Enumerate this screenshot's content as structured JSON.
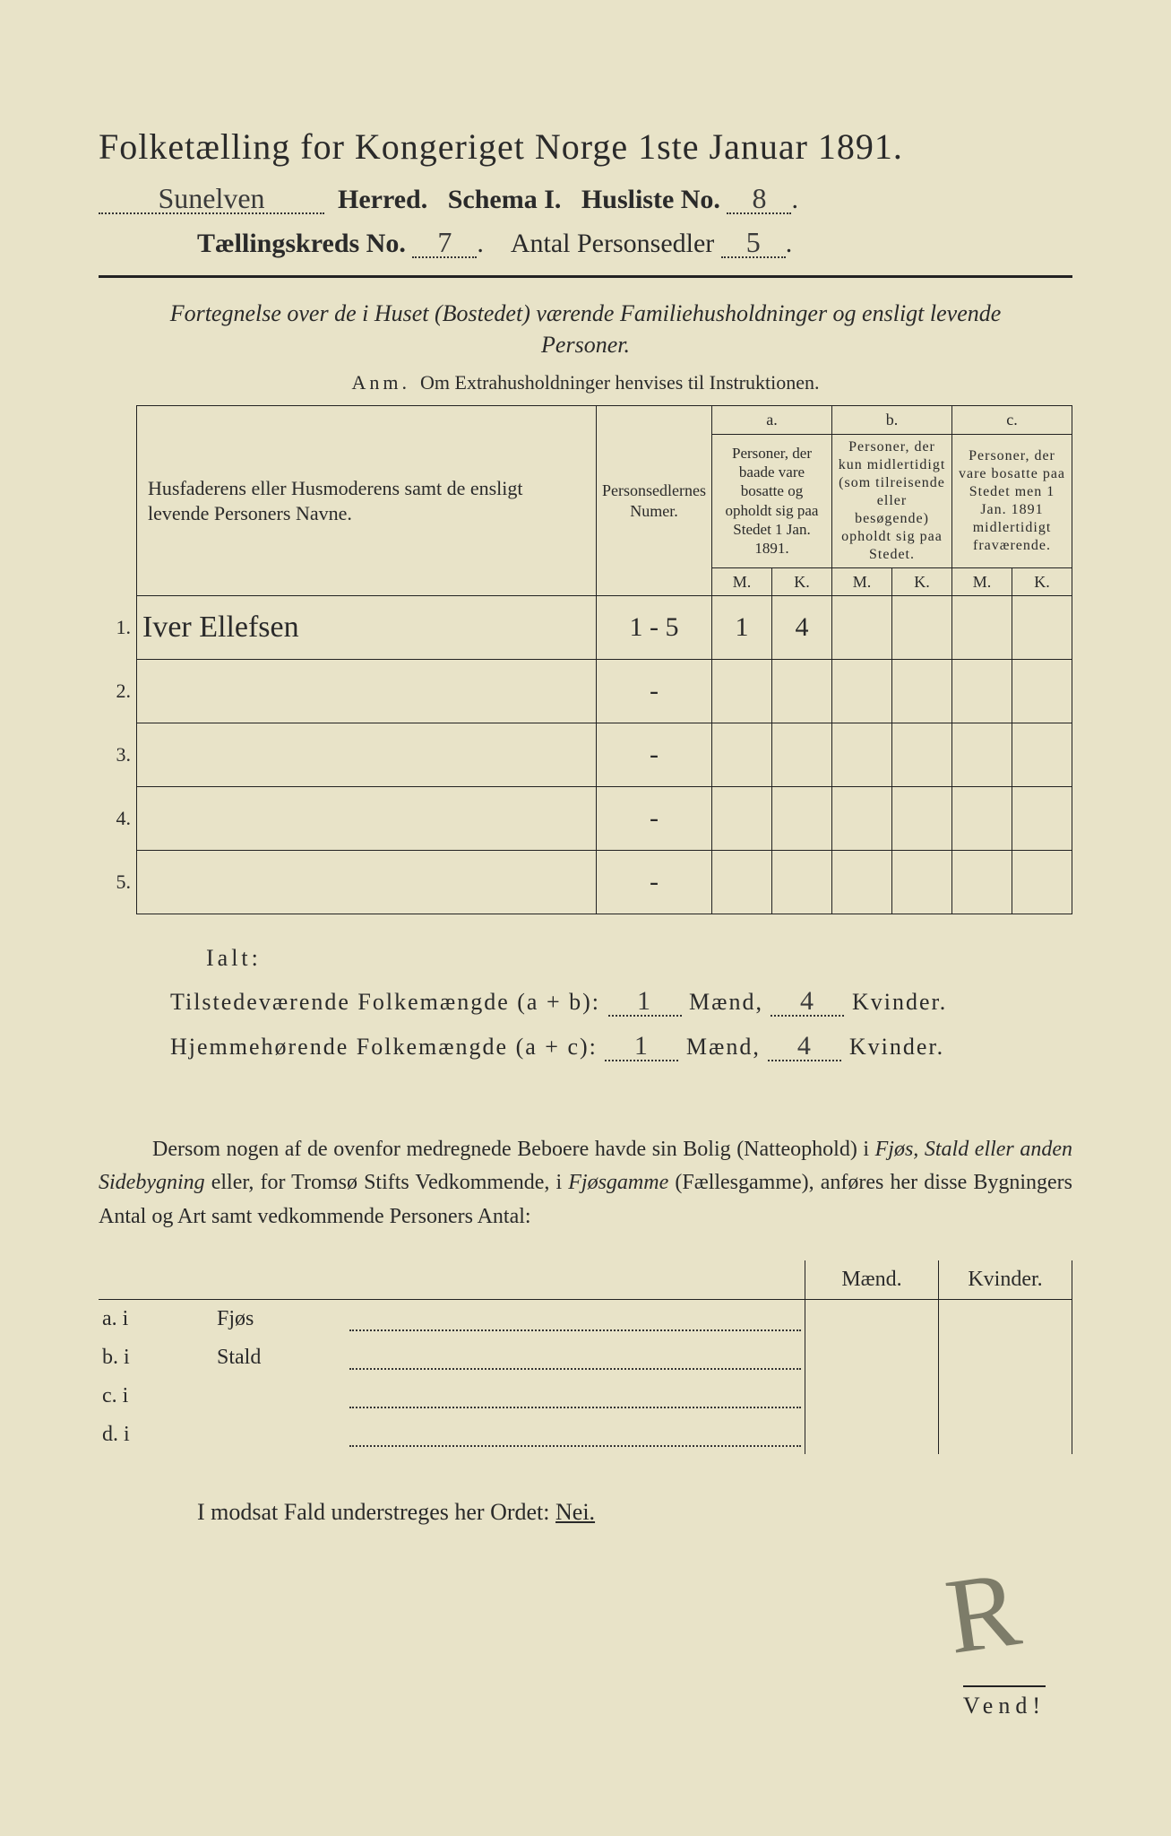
{
  "title": "Folketælling for Kongeriget Norge 1ste Januar 1891.",
  "header": {
    "herred_value": "Sunelven",
    "herred_label": "Herred.",
    "schema_label": "Schema I.",
    "husliste_label": "Husliste No.",
    "husliste_value": "8",
    "kreds_label": "Tællingskreds No.",
    "kreds_value": "7",
    "personsedler_label": "Antal Personsedler",
    "personsedler_value": "5"
  },
  "subtitle": "Fortegnelse over de i Huset (Bostedet) værende Familiehusholdninger og ensligt levende Personer.",
  "anm_label": "Anm.",
  "anm_text": "Om Extrahusholdninger henvises til Instruktionen.",
  "columns": {
    "name_header": "Husfaderens eller Husmoderens samt de ensligt levende Personers Navne.",
    "sedler_header": "Personsedlernes Numer.",
    "a_label": "a.",
    "a_text": "Personer, der baade vare bosatte og opholdt sig paa Stedet 1 Jan. 1891.",
    "b_label": "b.",
    "b_text": "Personer, der kun midlertidigt (som tilreisende eller besøgende) opholdt sig paa Stedet.",
    "c_label": "c.",
    "c_text": "Personer, der vare bosatte paa Stedet men 1 Jan. 1891 midlertidigt fraværende.",
    "M": "M.",
    "K": "K."
  },
  "rows": [
    {
      "n": "1.",
      "name": "Iver Ellefsen",
      "sedler": "1 - 5",
      "aM": "1",
      "aK": "4",
      "bM": "",
      "bK": "",
      "cM": "",
      "cK": ""
    },
    {
      "n": "2.",
      "name": "",
      "sedler": "-",
      "aM": "",
      "aK": "",
      "bM": "",
      "bK": "",
      "cM": "",
      "cK": ""
    },
    {
      "n": "3.",
      "name": "",
      "sedler": "-",
      "aM": "",
      "aK": "",
      "bM": "",
      "bK": "",
      "cM": "",
      "cK": ""
    },
    {
      "n": "4.",
      "name": "",
      "sedler": "-",
      "aM": "",
      "aK": "",
      "bM": "",
      "bK": "",
      "cM": "",
      "cK": ""
    },
    {
      "n": "5.",
      "name": "",
      "sedler": "-",
      "aM": "",
      "aK": "",
      "bM": "",
      "bK": "",
      "cM": "",
      "cK": ""
    }
  ],
  "ialt_label": "Ialt:",
  "sum1_label": "Tilstedeværende Folkemængde (a + b):",
  "sum2_label": "Hjemmehørende Folkemængde (a + c):",
  "maend_label": "Mænd,",
  "kvinder_label": "Kvinder.",
  "sum1_m": "1",
  "sum1_k": "4",
  "sum2_m": "1",
  "sum2_k": "4",
  "paragraph": "Dersom nogen af de ovenfor medregnede Beboere havde sin Bolig (Natteophold) i Fjøs, Stald eller anden Sidebygning eller, for Tromsø Stifts Vedkommende, i Fjøsgamme (Fællesgamme), anføres her disse Bygningers Antal og Art samt vedkommende Personers Antal:",
  "bldg_header_m": "Mænd.",
  "bldg_header_k": "Kvinder.",
  "bldg_rows": [
    {
      "l": "a.  i",
      "name": "Fjøs"
    },
    {
      "l": "b.  i",
      "name": "Stald"
    },
    {
      "l": "c.  i",
      "name": ""
    },
    {
      "l": "d.  i",
      "name": ""
    }
  ],
  "nei_line_pre": "I modsat Fald understreges her Ordet: ",
  "nei_word": "Nei.",
  "vend": "Vend!",
  "signature": "R",
  "colors": {
    "paper": "#e8e3c8",
    "ink": "#2a2a2a",
    "script": "#3a3a3a",
    "background": "#1a1a1a"
  }
}
